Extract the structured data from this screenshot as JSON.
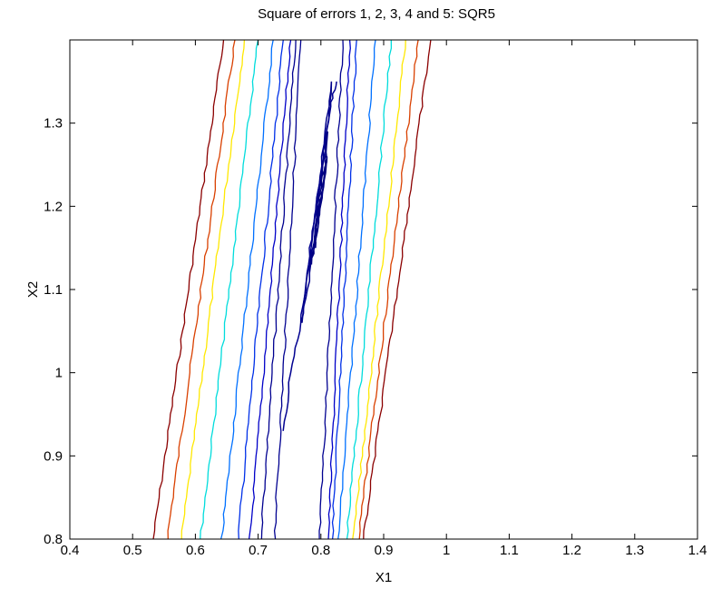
{
  "chart_data": {
    "type": "contour",
    "title": "Square of errors 1, 2, 3, 4 and 5: SQR5",
    "xlabel": "X1",
    "ylabel": "X2",
    "xlim": [
      0.4,
      1.4
    ],
    "ylim": [
      0.8,
      1.4
    ],
    "xticks": [
      "0.4",
      "0.5",
      "0.6",
      "0.7",
      "0.8",
      "0.9",
      "1",
      "1.1",
      "1.2",
      "1.3",
      "1.4"
    ],
    "yticks": [
      "0.8",
      "0.9",
      "1",
      "1.1",
      "1.2",
      "1.3"
    ],
    "grid": false,
    "colormap": "jet",
    "contour_lines": [
      {
        "color": "#8b0000",
        "points": [
          [
            0.533,
            0.8
          ],
          [
            0.645,
            1.4
          ]
        ]
      },
      {
        "color": "#d94000",
        "points": [
          [
            0.555,
            0.8
          ],
          [
            0.663,
            1.4
          ]
        ]
      },
      {
        "color": "#ffe800",
        "points": [
          [
            0.578,
            0.8
          ],
          [
            0.678,
            1.4
          ]
        ]
      },
      {
        "color": "#00dcdc",
        "points": [
          [
            0.608,
            0.8
          ],
          [
            0.7,
            1.4
          ]
        ]
      },
      {
        "color": "#0070ff",
        "points": [
          [
            0.642,
            0.8
          ],
          [
            0.724,
            1.4
          ]
        ]
      },
      {
        "color": "#0030e8",
        "points": [
          [
            0.668,
            0.8
          ],
          [
            0.74,
            1.4
          ]
        ]
      },
      {
        "color": "#0000c8",
        "points": [
          [
            0.687,
            0.8
          ],
          [
            0.752,
            1.4
          ]
        ]
      },
      {
        "color": "#000090",
        "points": [
          [
            0.704,
            0.8
          ],
          [
            0.76,
            1.4
          ]
        ]
      },
      {
        "color": "#000090",
        "points": [
          [
            0.726,
            0.8
          ],
          [
            0.768,
            1.4
          ]
        ]
      },
      {
        "color": "#000090",
        "points": [
          [
            0.798,
            0.8
          ],
          [
            0.835,
            1.4
          ]
        ]
      },
      {
        "color": "#0000c8",
        "points": [
          [
            0.812,
            0.8
          ],
          [
            0.846,
            1.4
          ]
        ]
      },
      {
        "color": "#0030e8",
        "points": [
          [
            0.818,
            0.8
          ],
          [
            0.857,
            1.4
          ]
        ]
      },
      {
        "color": "#0070ff",
        "points": [
          [
            0.828,
            0.8
          ],
          [
            0.887,
            1.4
          ]
        ]
      },
      {
        "color": "#00dcdc",
        "points": [
          [
            0.841,
            0.8
          ],
          [
            0.912,
            1.4
          ]
        ]
      },
      {
        "color": "#ffe800",
        "points": [
          [
            0.852,
            0.8
          ],
          [
            0.935,
            1.4
          ]
        ]
      },
      {
        "color": "#d94000",
        "points": [
          [
            0.86,
            0.8
          ],
          [
            0.955,
            1.4
          ]
        ]
      },
      {
        "color": "#8b0000",
        "points": [
          [
            0.868,
            0.8
          ],
          [
            0.975,
            1.4
          ]
        ]
      },
      {
        "color": "#000090",
        "points": [
          [
            0.741,
            0.93
          ],
          [
            0.752,
            1.0
          ],
          [
            0.768,
            1.06
          ],
          [
            0.778,
            1.12
          ],
          [
            0.788,
            1.18
          ],
          [
            0.8,
            1.24
          ],
          [
            0.815,
            1.32
          ],
          [
            0.825,
            1.35
          ]
        ]
      },
      {
        "color": "#00008b",
        "points": [
          [
            0.77,
            1.06
          ],
          [
            0.781,
            1.13
          ],
          [
            0.79,
            1.19
          ],
          [
            0.802,
            1.26
          ],
          [
            0.818,
            1.35
          ],
          [
            0.808,
            1.28
          ],
          [
            0.795,
            1.2
          ],
          [
            0.783,
            1.12
          ],
          [
            0.77,
            1.06
          ]
        ]
      },
      {
        "color": "#000080",
        "points": [
          [
            0.785,
            1.13
          ],
          [
            0.792,
            1.17
          ],
          [
            0.798,
            1.21
          ],
          [
            0.806,
            1.25
          ],
          [
            0.812,
            1.29
          ],
          [
            0.806,
            1.24
          ],
          [
            0.797,
            1.19
          ],
          [
            0.785,
            1.13
          ]
        ]
      },
      {
        "color": "#000080",
        "points": [
          [
            0.79,
            1.15
          ],
          [
            0.795,
            1.19
          ],
          [
            0.803,
            1.22
          ],
          [
            0.809,
            1.26
          ],
          [
            0.802,
            1.21
          ],
          [
            0.79,
            1.15
          ]
        ]
      }
    ]
  }
}
